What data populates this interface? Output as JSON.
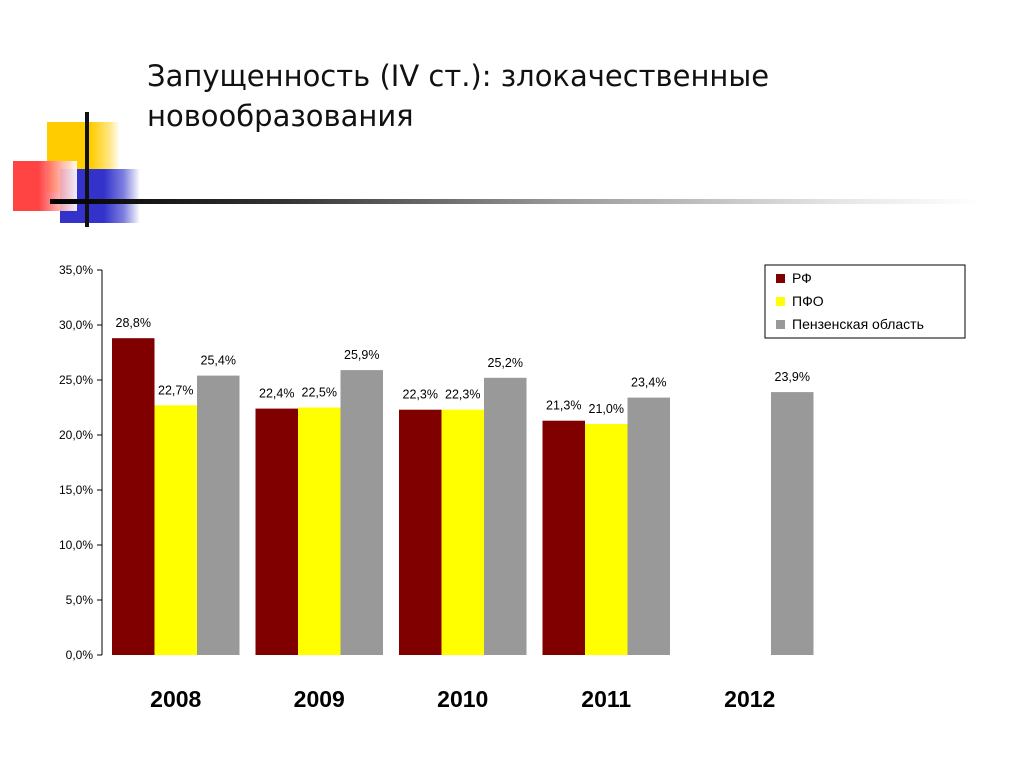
{
  "slide": {
    "title_line1": "Запущенность (IV ст.): злокачественные",
    "title_line2": "новообразования"
  },
  "colors": {
    "rf": "#800000",
    "pfo": "#ffff00",
    "penza": "#999999",
    "deco_yellow": "#ffcc00",
    "deco_blue": "#3333cc",
    "deco_red": "#ff3333"
  },
  "chart_data": {
    "type": "bar",
    "categories": [
      "2008",
      "2009",
      "2010",
      "2011",
      "2012"
    ],
    "series": [
      {
        "name": "РФ",
        "values": [
          28.8,
          22.4,
          22.3,
          21.3,
          null
        ],
        "labels": [
          "28,8%",
          "22,4%",
          "22,3%",
          "21,3%",
          ""
        ]
      },
      {
        "name": "ПФО",
        "values": [
          22.7,
          22.5,
          22.3,
          21.0,
          null
        ],
        "labels": [
          "22,7%",
          "22,5%",
          "22,3%",
          "21,0%",
          ""
        ]
      },
      {
        "name": "Пензенская область",
        "values": [
          25.4,
          25.9,
          25.2,
          23.4,
          23.9
        ],
        "labels": [
          "25,4%",
          "25,9%",
          "25,2%",
          "23,4%",
          "23,9%"
        ]
      }
    ],
    "yticks": [
      {
        "value": 0,
        "label": "0,0%"
      },
      {
        "value": 5,
        "label": "5,0%"
      },
      {
        "value": 10,
        "label": "10,0%"
      },
      {
        "value": 15,
        "label": "15,0%"
      },
      {
        "value": 20,
        "label": "20,0%"
      },
      {
        "value": 25,
        "label": "25,0%"
      },
      {
        "value": 30,
        "label": "30,0%"
      },
      {
        "value": 35,
        "label": "35,0%"
      }
    ],
    "ylim": [
      0,
      35
    ],
    "grid": false,
    "legend_position": "top-right"
  }
}
